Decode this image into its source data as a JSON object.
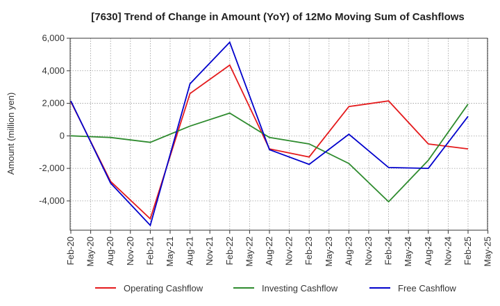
{
  "chart_data": {
    "type": "line",
    "title": "[7630]  Trend of Change in Amount (YoY) of 12Mo Moving Sum of Cashflows",
    "xlabel": "",
    "ylabel": "Amount (million yen)",
    "ylim": [
      -5800,
      6000
    ],
    "yticks": [
      6000,
      4000,
      2000,
      0,
      -2000,
      -4000
    ],
    "ytick_labels": [
      "6,000",
      "4,000",
      "2,000",
      "0",
      "-2,000",
      "-4,000"
    ],
    "x_tick_labels": [
      "Feb-20",
      "May-20",
      "Aug-20",
      "Nov-20",
      "Feb-21",
      "May-21",
      "Aug-21",
      "Nov-21",
      "Feb-22",
      "May-22",
      "Aug-22",
      "Nov-22",
      "Feb-23",
      "May-23",
      "Aug-23",
      "Nov-23",
      "Feb-24",
      "May-24",
      "Aug-24",
      "Nov-24",
      "Feb-25",
      "May-25"
    ],
    "x": [
      "Feb-20",
      "Aug-20",
      "Feb-21",
      "Aug-21",
      "Feb-22",
      "Aug-22",
      "Feb-23",
      "Aug-23",
      "Feb-24",
      "Aug-24",
      "Feb-25"
    ],
    "grid": true,
    "legend_position": "bottom",
    "series": [
      {
        "name": "Operating Cashflow",
        "color": "#e41a1c",
        "values": [
          2100,
          -2800,
          -5100,
          2600,
          4350,
          -800,
          -1300,
          1800,
          2150,
          -500,
          -800
        ]
      },
      {
        "name": "Investing Cashflow",
        "color": "#2e8b2e",
        "values": [
          0,
          -100,
          -400,
          600,
          1400,
          -100,
          -500,
          -1700,
          -4050,
          -1500,
          1950
        ]
      },
      {
        "name": "Free Cashflow",
        "color": "#0000cc",
        "values": [
          2150,
          -2900,
          -5500,
          3200,
          5750,
          -850,
          -1750,
          100,
          -1950,
          -2000,
          1200
        ]
      }
    ]
  }
}
